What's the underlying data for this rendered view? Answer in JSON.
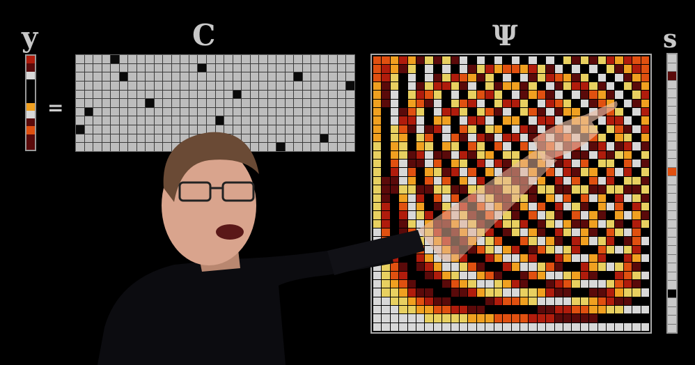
{
  "labels": {
    "y": "y",
    "c": "C",
    "psi": "Ψ",
    "s": "s",
    "equals": "="
  },
  "palette": [
    "#000000",
    "#5a0a0a",
    "#b01c0c",
    "#e05010",
    "#f0a020",
    "#e8d060",
    "#d8d8d8"
  ],
  "y_vector": [
    2,
    1,
    6,
    0,
    0,
    0,
    4,
    6,
    1,
    3,
    1,
    1
  ],
  "c_matrix_on": [
    [
      1,
      5
    ],
    [
      2,
      15
    ],
    [
      3,
      6
    ],
    [
      3,
      26
    ],
    [
      4,
      32
    ],
    [
      5,
      19
    ],
    [
      6,
      9
    ],
    [
      7,
      2
    ],
    [
      8,
      17
    ],
    [
      9,
      1
    ],
    [
      10,
      29
    ],
    [
      11,
      24
    ],
    [
      12,
      13
    ]
  ],
  "s_vector_nonzero": {
    "2": 1,
    "13": 3,
    "27": 0
  }
}
